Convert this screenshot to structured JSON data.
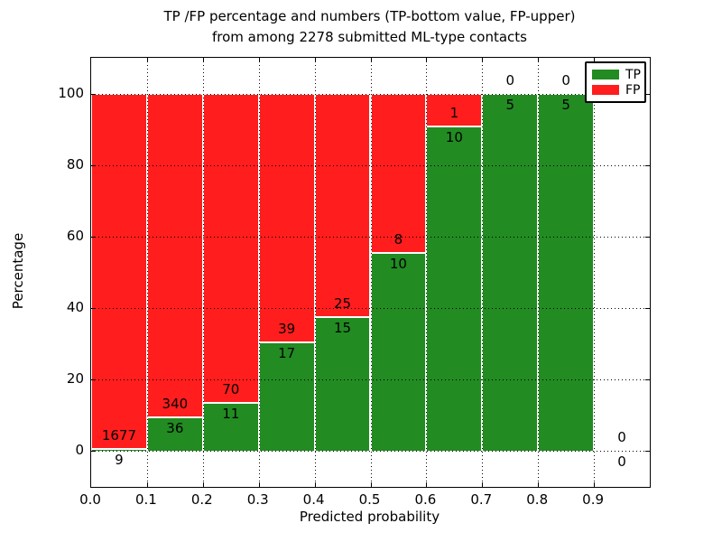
{
  "figure": {
    "title_line1": "TP /FP percentage and numbers (TP-bottom value, FP-upper)",
    "title_line2": "from among 2278 submitted ML-type contacts",
    "xlabel": "Predicted probability",
    "ylabel": "Percentage"
  },
  "legend": {
    "position": "upper-right",
    "items": [
      {
        "label": "TP",
        "color": "#228b22"
      },
      {
        "label": "FP",
        "color": "#ff1d1d"
      }
    ]
  },
  "chart_data": {
    "type": "bar",
    "stacked": true,
    "normalized": "each bar scaled to 100%",
    "title": "TP /FP percentage and numbers (TP-bottom value, FP-upper) from among 2278 submitted ML-type contacts",
    "xlabel": "Predicted probability",
    "ylabel": "Percentage",
    "xlim": [
      0.0,
      1.0
    ],
    "ylim": [
      -10,
      110
    ],
    "grid": "dotted, drawn above bars",
    "xticks": [
      {
        "value": 0.0,
        "label": "0.0"
      },
      {
        "value": 0.1,
        "label": "0.1"
      },
      {
        "value": 0.2,
        "label": "0.2"
      },
      {
        "value": 0.3,
        "label": "0.3"
      },
      {
        "value": 0.4,
        "label": "0.4"
      },
      {
        "value": 0.5,
        "label": "0.5"
      },
      {
        "value": 0.6,
        "label": "0.6"
      },
      {
        "value": 0.7,
        "label": "0.7"
      },
      {
        "value": 0.8,
        "label": "0.8"
      },
      {
        "value": 0.9,
        "label": "0.9"
      }
    ],
    "yticks": [
      {
        "value": 0,
        "label": "0"
      },
      {
        "value": 20,
        "label": "20"
      },
      {
        "value": 40,
        "label": "40"
      },
      {
        "value": 60,
        "label": "60"
      },
      {
        "value": 80,
        "label": "80"
      },
      {
        "value": 100,
        "label": "100"
      }
    ],
    "colors": {
      "tp": "#228b22",
      "fp": "#ff1d1d",
      "bar_edge": "#ffffff"
    },
    "bins": [
      {
        "x_start": 0.0,
        "x_end": 0.1,
        "tp": 9,
        "fp": 1677,
        "tp_percent": 0.5
      },
      {
        "x_start": 0.1,
        "x_end": 0.2,
        "tp": 36,
        "fp": 340,
        "tp_percent": 9.6
      },
      {
        "x_start": 0.2,
        "x_end": 0.3,
        "tp": 11,
        "fp": 70,
        "tp_percent": 13.6
      },
      {
        "x_start": 0.3,
        "x_end": 0.4,
        "tp": 17,
        "fp": 39,
        "tp_percent": 30.4
      },
      {
        "x_start": 0.4,
        "x_end": 0.5,
        "tp": 15,
        "fp": 25,
        "tp_percent": 37.5
      },
      {
        "x_start": 0.5,
        "x_end": 0.6,
        "tp": 10,
        "fp": 8,
        "tp_percent": 55.6
      },
      {
        "x_start": 0.6,
        "x_end": 0.7,
        "tp": 10,
        "fp": 1,
        "tp_percent": 90.9
      },
      {
        "x_start": 0.7,
        "x_end": 0.8,
        "tp": 5,
        "fp": 0,
        "tp_percent": 100
      },
      {
        "x_start": 0.8,
        "x_end": 0.9,
        "tp": 5,
        "fp": 0,
        "tp_percent": 100
      },
      {
        "x_start": 0.9,
        "x_end": 1.0,
        "tp": 0,
        "fp": 0,
        "tp_percent": null
      }
    ]
  }
}
